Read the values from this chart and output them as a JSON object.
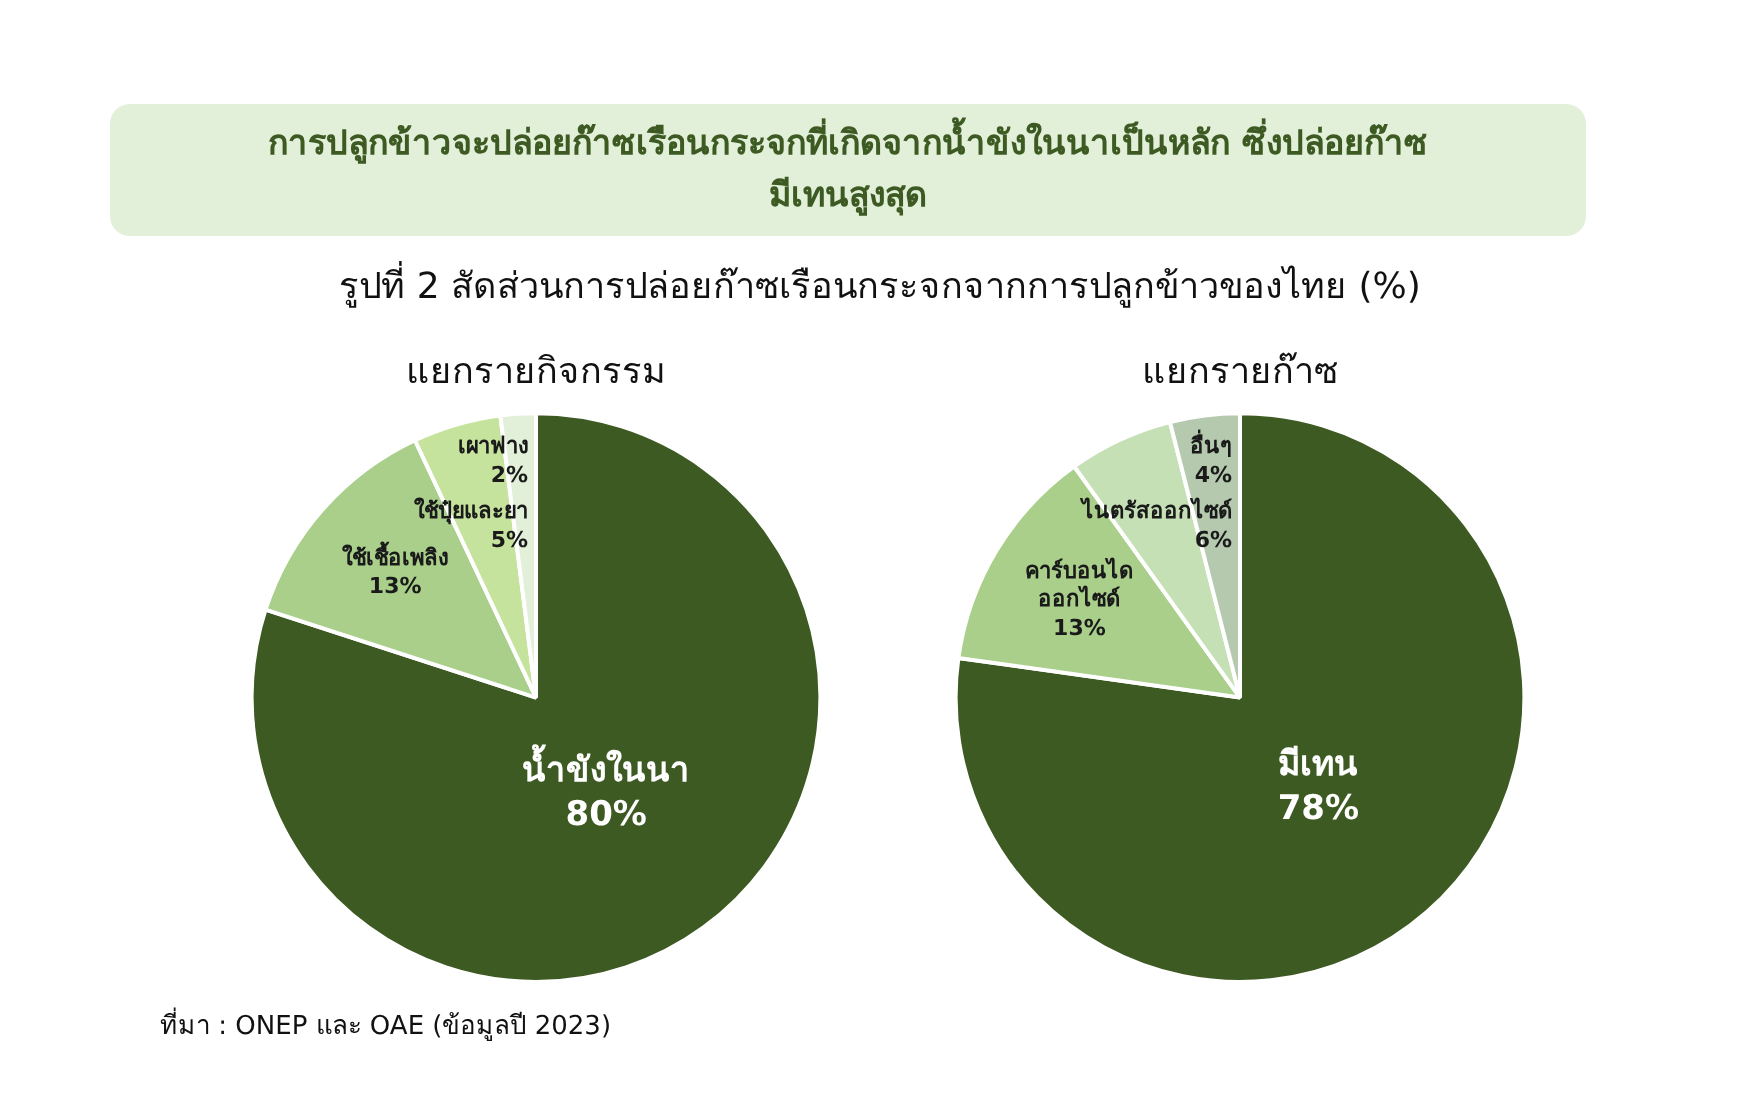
{
  "chart_data": [
    {
      "type": "other",
      "title": "การปลูกข้าวจะปล่อยก๊าซเรือนกระจกที่เกิดจากน้ำขังในนาเป็นหลัก ซึ่งปล่อยก๊าซมีเทนสูงสุด",
      "subtitle": "รูปที่ 2 สัดส่วนการปล่อยก๊าซเรือนกระจกจากการปลูกข้าวของไทย (%)",
      "annotations": [
        "ที่มา : ONEP และ OAE (ข้อมูลปี 2023)"
      ]
    },
    {
      "type": "pie",
      "title": "แยกรายกิจกรรม",
      "categories": [
        "น้ำขังในนา",
        "ใช้เชื้อเพลิง",
        "ใช้ปุ๋ยและยา",
        "เผาฟาง"
      ],
      "values": [
        80,
        13,
        5,
        2
      ],
      "value_labels": [
        "80%",
        "13%",
        "5%",
        "2%"
      ],
      "colors": [
        "#3d5a23",
        "#a9cf8a",
        "#c6e39e",
        "#e2efd9"
      ],
      "legend": false
    },
    {
      "type": "pie",
      "title": "แยกรายก๊าซ",
      "categories": [
        "มีเทน",
        "คาร์บอนได\nออกไซด์",
        "ไนตรัสออกไซด์",
        "อื่นๆ"
      ],
      "values": [
        78,
        13,
        6,
        4
      ],
      "value_labels": [
        "78%",
        "13%",
        "6%",
        "4%"
      ],
      "colors": [
        "#3d5a23",
        "#a9cf8a",
        "#c5e0b4",
        "#b4c9ae"
      ],
      "legend": false
    }
  ]
}
